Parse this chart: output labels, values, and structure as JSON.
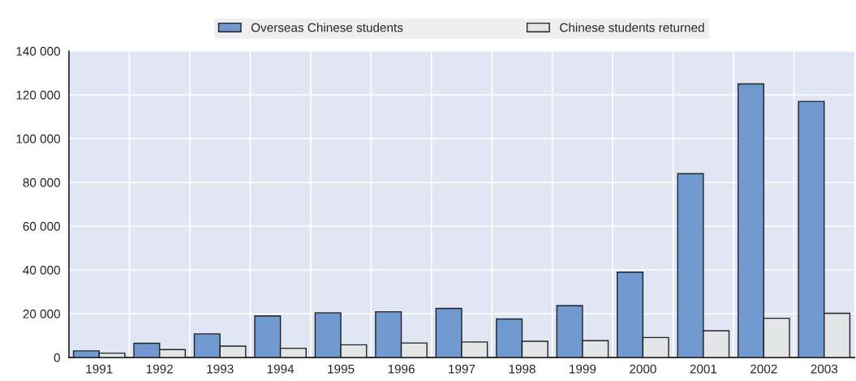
{
  "chart_data": {
    "type": "bar",
    "categories": [
      "1991",
      "1992",
      "1993",
      "1994",
      "1995",
      "1996",
      "1997",
      "1998",
      "1999",
      "2000",
      "2001",
      "2002",
      "2003"
    ],
    "series": [
      {
        "name": "Overseas Chinese students",
        "color": "#7099d0",
        "values": [
          3000,
          6500,
          10800,
          19000,
          20400,
          20900,
          22400,
          17600,
          23700,
          39000,
          84000,
          125000,
          117000
        ]
      },
      {
        "name": "Chinese students returned",
        "color": "#e4e5e6",
        "values": [
          2000,
          3600,
          5200,
          4200,
          5800,
          6600,
          7100,
          7400,
          7700,
          9100,
          12200,
          17900,
          20200
        ]
      }
    ],
    "ylim": [
      0,
      140000
    ],
    "yticks": [
      {
        "value": 0,
        "label": "0"
      },
      {
        "value": 20000,
        "label": "20 000"
      },
      {
        "value": 40000,
        "label": "40 000"
      },
      {
        "value": 60000,
        "label": "60 000"
      },
      {
        "value": 80000,
        "label": "80 000"
      },
      {
        "value": 100000,
        "label": "100 000"
      },
      {
        "value": 120000,
        "label": "120 000"
      },
      {
        "value": 140000,
        "label": "140 000"
      }
    ],
    "grid": true,
    "legend": "top"
  }
}
